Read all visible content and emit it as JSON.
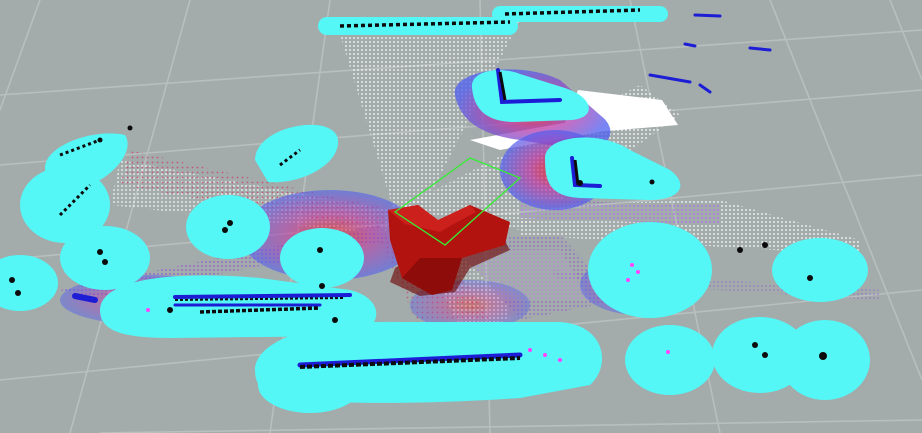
{
  "view": {
    "type": "3d-costmap-visualization",
    "background_color": "#a3abab",
    "grid_color": "#b9bfbf"
  },
  "colors": {
    "inflation": "#55f6f6",
    "lethal": "#1d1dd6",
    "gradient_inner": "#a020c8",
    "free_rays": "#ffffff",
    "obstacle_points": "#0b0b0b",
    "robot": "#b3130f",
    "robot_shadow": "#6d0a08",
    "footprint": "#33ee33",
    "unknown_markers": "#ff44ff"
  },
  "legend": {
    "robot_icon": "robot-icon",
    "footprint_icon": "footprint-outline-icon",
    "costmap_icon": "costmap-icon"
  }
}
